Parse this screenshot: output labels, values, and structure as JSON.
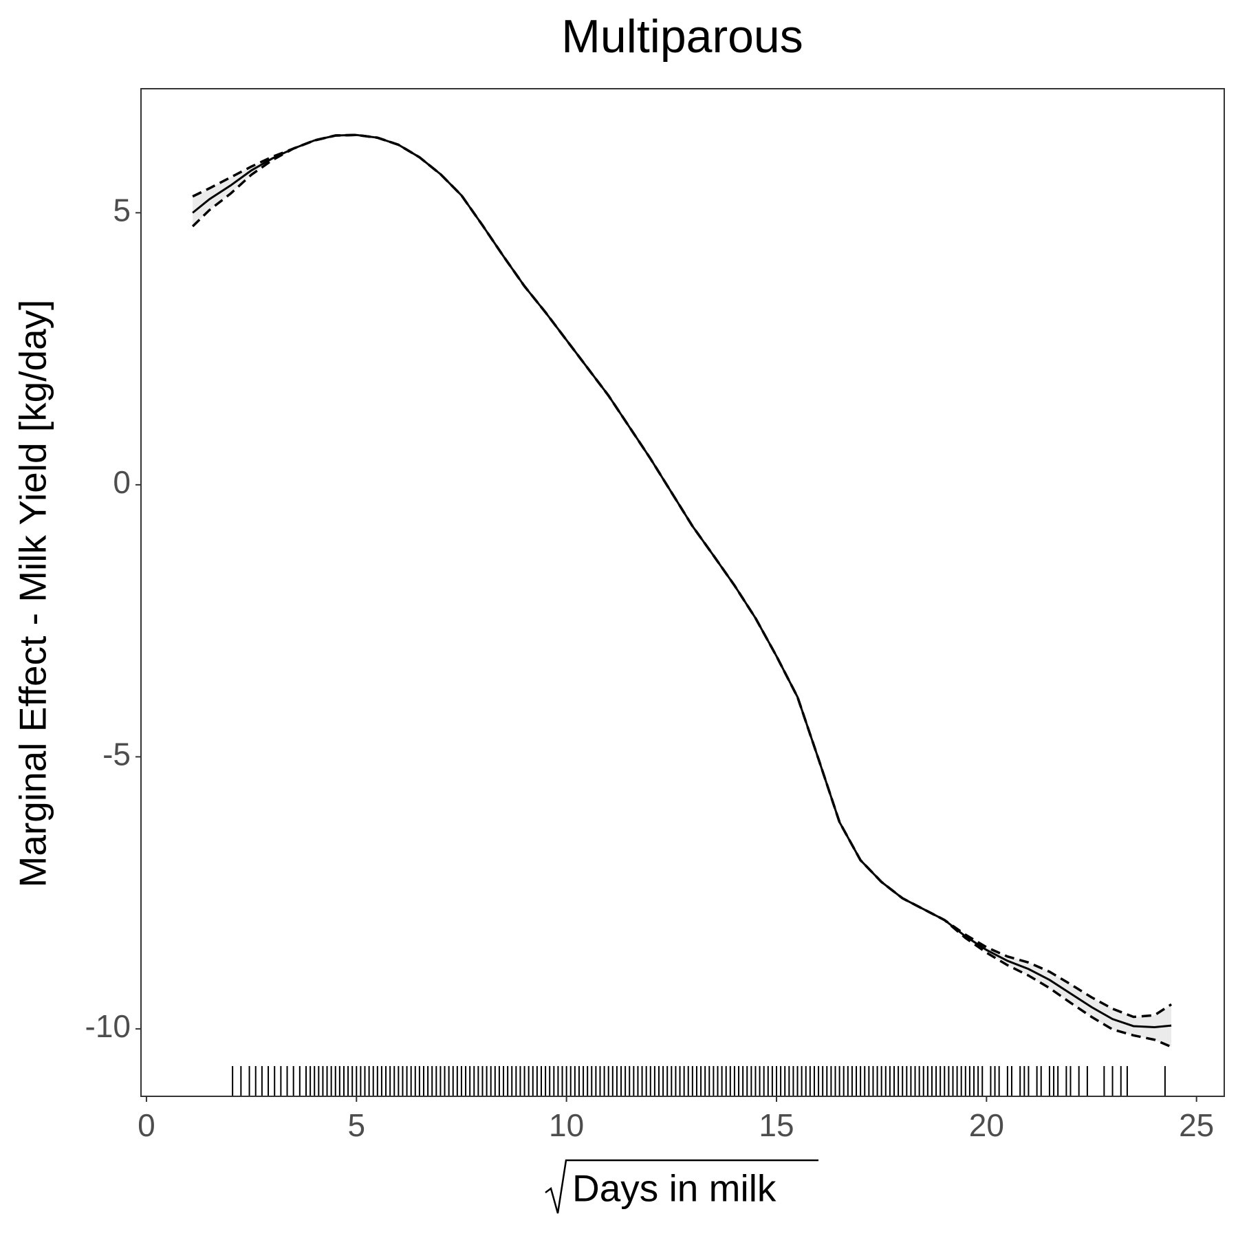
{
  "chart_data": {
    "type": "line",
    "title": "Multiparous",
    "x_label": "Days in milk",
    "y_label": "Marginal Effect - Milk Yield [kg/day]",
    "x": [
      1.1,
      1.5,
      2,
      2.5,
      3,
      3.5,
      4,
      4.5,
      5,
      5.5,
      6,
      6.5,
      7,
      7.5,
      8,
      8.5,
      9,
      9.5,
      10,
      10.5,
      11,
      11.5,
      12,
      12.5,
      13,
      13.5,
      14,
      14.5,
      15,
      15.5,
      16,
      16.5,
      17,
      17.5,
      18,
      18.5,
      19,
      19.5,
      20,
      20.5,
      21,
      21.5,
      22,
      22.5,
      23,
      23.5,
      24,
      24.4
    ],
    "series": [
      {
        "name": "fit",
        "color": "#000000",
        "values": [
          5.0,
          5.25,
          5.5,
          5.78,
          6.0,
          6.18,
          6.33,
          6.42,
          6.43,
          6.38,
          6.25,
          6.02,
          5.71,
          5.32,
          4.77,
          4.2,
          3.65,
          3.17,
          2.66,
          2.15,
          1.64,
          1.06,
          0.48,
          -0.14,
          -0.76,
          -1.3,
          -1.85,
          -2.45,
          -3.15,
          -3.9,
          -5.04,
          -6.2,
          -6.9,
          -7.3,
          -7.6,
          -7.8,
          -8.0,
          -8.3,
          -8.55,
          -8.75,
          -8.9,
          -9.1,
          -9.35,
          -9.6,
          -9.82,
          -9.95,
          -9.97,
          -9.94
        ]
      },
      {
        "name": "upper",
        "color": "#000000",
        "values": [
          5.3,
          5.45,
          5.65,
          5.85,
          6.03,
          6.18,
          6.33,
          6.42,
          6.43,
          6.38,
          6.25,
          6.02,
          5.71,
          5.32,
          4.77,
          4.2,
          3.65,
          3.17,
          2.66,
          2.15,
          1.64,
          1.06,
          0.48,
          -0.14,
          -0.76,
          -1.3,
          -1.85,
          -2.45,
          -3.15,
          -3.9,
          -5.04,
          -6.2,
          -6.9,
          -7.3,
          -7.6,
          -7.8,
          -8.0,
          -8.27,
          -8.5,
          -8.67,
          -8.78,
          -8.95,
          -9.18,
          -9.42,
          -9.63,
          -9.78,
          -9.75,
          -9.55
        ]
      },
      {
        "name": "lower",
        "color": "#000000",
        "values": [
          4.75,
          5.05,
          5.35,
          5.7,
          5.97,
          6.18,
          6.33,
          6.42,
          6.43,
          6.38,
          6.25,
          6.02,
          5.71,
          5.32,
          4.77,
          4.2,
          3.65,
          3.17,
          2.66,
          2.15,
          1.64,
          1.06,
          0.48,
          -0.14,
          -0.76,
          -1.3,
          -1.85,
          -2.45,
          -3.15,
          -3.9,
          -5.04,
          -6.2,
          -6.9,
          -7.3,
          -7.6,
          -7.8,
          -8.0,
          -8.33,
          -8.6,
          -8.83,
          -9.02,
          -9.25,
          -9.52,
          -9.78,
          -10.01,
          -10.12,
          -10.2,
          -10.33
        ]
      }
    ],
    "band_color": "#ebebeb",
    "rug": [
      2.05,
      2.25,
      2.45,
      2.6,
      2.75,
      2.9,
      3.05,
      3.2,
      3.35,
      3.5,
      3.65,
      3.8,
      3.9,
      4.0,
      4.1,
      4.2,
      4.3,
      4.4,
      4.5,
      4.6,
      4.7,
      4.8,
      4.9,
      5.0,
      5.1,
      5.2,
      5.3,
      5.4,
      5.5,
      5.6,
      5.7,
      5.8,
      5.9,
      6.0,
      6.1,
      6.2,
      6.3,
      6.4,
      6.5,
      6.6,
      6.7,
      6.8,
      6.9,
      7.0,
      7.1,
      7.2,
      7.3,
      7.4,
      7.5,
      7.6,
      7.7,
      7.8,
      7.9,
      8.0,
      8.1,
      8.2,
      8.3,
      8.4,
      8.5,
      8.6,
      8.7,
      8.8,
      8.9,
      9.0,
      9.1,
      9.2,
      9.3,
      9.4,
      9.5,
      9.6,
      9.7,
      9.8,
      9.9,
      10.0,
      10.1,
      10.2,
      10.3,
      10.4,
      10.5,
      10.6,
      10.7,
      10.8,
      10.9,
      11.0,
      11.1,
      11.2,
      11.3,
      11.4,
      11.5,
      11.6,
      11.7,
      11.8,
      11.9,
      12.0,
      12.1,
      12.2,
      12.3,
      12.4,
      12.5,
      12.6,
      12.7,
      12.8,
      12.9,
      13.0,
      13.1,
      13.2,
      13.3,
      13.4,
      13.5,
      13.6,
      13.7,
      13.8,
      13.9,
      14.0,
      14.1,
      14.2,
      14.3,
      14.4,
      14.5,
      14.6,
      14.7,
      14.8,
      14.9,
      15.0,
      15.1,
      15.2,
      15.3,
      15.4,
      15.5,
      15.6,
      15.7,
      15.8,
      15.9,
      16.0,
      16.1,
      16.2,
      16.3,
      16.4,
      16.5,
      16.6,
      16.7,
      16.8,
      16.9,
      17.0,
      17.1,
      17.2,
      17.3,
      17.4,
      17.5,
      17.6,
      17.7,
      17.8,
      17.9,
      18.0,
      18.1,
      18.2,
      18.3,
      18.4,
      18.5,
      18.6,
      18.7,
      18.8,
      18.9,
      19.0,
      19.1,
      19.2,
      19.3,
      19.4,
      19.5,
      19.6,
      19.7,
      19.8,
      19.9,
      20.1,
      20.2,
      20.3,
      20.5,
      20.6,
      20.8,
      20.9,
      21.0,
      21.2,
      21.3,
      21.5,
      21.6,
      21.7,
      21.9,
      22.0,
      22.2,
      22.4,
      22.8,
      23.0,
      23.2,
      23.35,
      24.25
    ],
    "xlim": [
      -0.13,
      25.66
    ],
    "xticks": [
      0,
      5,
      10,
      15,
      20,
      25
    ],
    "ylim": [
      -11.24,
      7.28
    ],
    "yticks": [
      -10,
      -5,
      0,
      5
    ],
    "grid": false
  }
}
